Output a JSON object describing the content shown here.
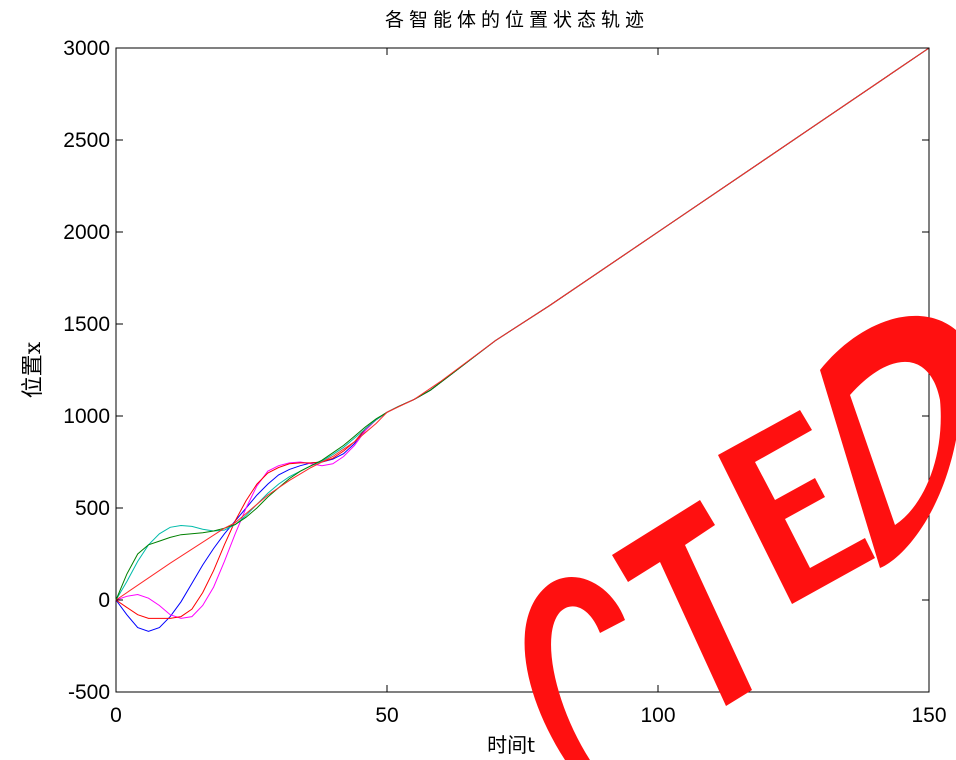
{
  "chart_data": {
    "type": "line",
    "title": "各智能体的位置状态轨迹",
    "xlabel": "时间t",
    "ylabel": "位置x",
    "xlim": [
      0,
      150
    ],
    "ylim": [
      -500,
      3000
    ],
    "xticks": [
      0,
      50,
      100,
      150
    ],
    "yticks": [
      -500,
      0,
      500,
      1000,
      1500,
      2000,
      2500,
      3000
    ],
    "grid": false,
    "legend": "none",
    "series": [
      {
        "color": "#0000ff",
        "x": [
          0,
          2,
          4,
          6,
          8,
          10,
          12,
          14,
          16,
          18,
          20,
          22,
          24,
          26,
          28,
          30,
          32,
          34,
          36,
          38,
          40,
          42,
          44,
          46,
          48,
          50,
          52,
          55,
          58,
          62,
          66,
          70,
          80,
          100,
          120,
          150
        ],
        "y": [
          0,
          -80,
          -150,
          -170,
          -150,
          -90,
          -10,
          90,
          190,
          280,
          360,
          430,
          500,
          570,
          630,
          680,
          710,
          730,
          745,
          750,
          765,
          795,
          850,
          930,
          980,
          1020,
          1050,
          1090,
          1140,
          1230,
          1320,
          1410,
          1600,
          2000,
          2400,
          3000
        ]
      },
      {
        "color": "#ff00ff",
        "x": [
          0,
          2,
          4,
          6,
          8,
          10,
          12,
          14,
          16,
          18,
          20,
          22,
          24,
          26,
          28,
          30,
          32,
          34,
          36,
          38,
          40,
          42,
          44,
          46,
          48,
          50,
          52,
          55,
          58,
          62,
          66,
          70,
          80,
          100,
          120,
          150
        ],
        "y": [
          0,
          20,
          30,
          10,
          -30,
          -80,
          -100,
          -90,
          -30,
          70,
          210,
          360,
          500,
          620,
          700,
          730,
          745,
          750,
          740,
          730,
          740,
          780,
          840,
          920,
          980,
          1020,
          1050,
          1090,
          1140,
          1230,
          1320,
          1410,
          1600,
          2000,
          2400,
          3000
        ]
      },
      {
        "color": "#ff0000",
        "x": [
          0,
          2,
          4,
          6,
          8,
          10,
          12,
          14,
          16,
          18,
          20,
          22,
          24,
          26,
          28,
          30,
          32,
          34,
          36,
          38,
          40,
          42,
          44,
          46,
          48,
          50,
          52,
          55,
          58,
          62,
          66,
          70,
          80,
          100,
          120,
          150
        ],
        "y": [
          0,
          -40,
          -80,
          -100,
          -100,
          -100,
          -90,
          -50,
          40,
          160,
          300,
          430,
          540,
          630,
          690,
          720,
          740,
          745,
          745,
          750,
          770,
          810,
          860,
          930,
          980,
          1020,
          1050,
          1090,
          1140,
          1230,
          1320,
          1410,
          1600,
          2000,
          2400,
          3000
        ]
      },
      {
        "color": "#00bbaa",
        "x": [
          0,
          2,
          4,
          6,
          8,
          10,
          12,
          14,
          16,
          18,
          20,
          22,
          24,
          26,
          28,
          30,
          32,
          34,
          36,
          38,
          40,
          42,
          44,
          46,
          48,
          50,
          52,
          55,
          58,
          62,
          66,
          70,
          80,
          100,
          120,
          150
        ],
        "y": [
          0,
          100,
          210,
          300,
          360,
          395,
          405,
          400,
          385,
          375,
          380,
          410,
          460,
          520,
          580,
          630,
          670,
          700,
          730,
          755,
          790,
          830,
          880,
          930,
          980,
          1020,
          1050,
          1090,
          1140,
          1230,
          1320,
          1410,
          1600,
          2000,
          2400,
          3000
        ]
      },
      {
        "color": "#008000",
        "x": [
          0,
          2,
          4,
          6,
          8,
          10,
          12,
          14,
          16,
          18,
          20,
          22,
          24,
          26,
          28,
          30,
          32,
          34,
          36,
          38,
          40,
          42,
          44,
          46,
          48,
          50,
          52,
          55,
          58,
          62,
          66,
          70,
          80,
          100,
          120,
          150
        ],
        "y": [
          0,
          140,
          250,
          300,
          320,
          340,
          355,
          360,
          365,
          375,
          390,
          410,
          450,
          500,
          560,
          610,
          660,
          700,
          730,
          760,
          800,
          840,
          890,
          940,
          985,
          1020,
          1050,
          1090,
          1140,
          1230,
          1320,
          1410,
          1600,
          2000,
          2400,
          3000
        ]
      },
      {
        "color": "#ff2a2a",
        "x": [
          0,
          10,
          20,
          22,
          24,
          28,
          32,
          36,
          40,
          44,
          48,
          50,
          55,
          60,
          70,
          80,
          100,
          120,
          150
        ],
        "y": [
          0,
          200,
          390,
          420,
          470,
          570,
          650,
          720,
          780,
          860,
          960,
          1020,
          1090,
          1190,
          1410,
          1600,
          2000,
          2400,
          3000
        ]
      }
    ]
  },
  "watermark": {
    "text": "REDACTED",
    "color": "#ff0000"
  }
}
